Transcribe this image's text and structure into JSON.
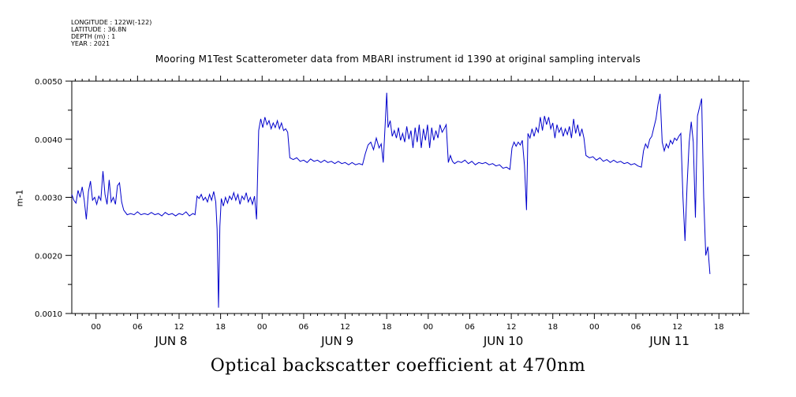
{
  "header": {
    "longitude": "LONGITUDE : 122W(-122)",
    "latitude": "LATITUDE : 36.8N",
    "depth": "DEPTH (m) : 1",
    "year": "YEAR : 2021",
    "title": "Mooring M1Test Scatterometer data from MBARI instrument id 1390 at original sampling intervals"
  },
  "xaxis_title": "Optical backscatter coefficient at 470nm",
  "chart_data": {
    "type": "line",
    "ylabel": "m-1",
    "xlabel": "Optical backscatter coefficient at 470nm",
    "xlim": [
      -3.5,
      93.5
    ],
    "ylim": [
      0.001,
      0.005
    ],
    "x_unit": "hours since 2021-06-08 00:00",
    "yticks": [
      "0.0010",
      "0.0020",
      "0.0030",
      "0.0040",
      "0.0050"
    ],
    "ytick_values": [
      0.001,
      0.002,
      0.003,
      0.004,
      0.005
    ],
    "xtick_labels": [
      "00",
      "06",
      "12",
      "18",
      "00",
      "06",
      "12",
      "18",
      "00",
      "06",
      "12",
      "18",
      "00",
      "06",
      "12",
      "18"
    ],
    "xtick_hours": [
      0,
      6,
      12,
      18,
      24,
      30,
      36,
      42,
      48,
      54,
      60,
      66,
      72,
      78,
      84,
      90
    ],
    "day_labels": [
      "JUN  8",
      "JUN  9",
      "JUN 10",
      "JUN 11"
    ],
    "day_label_hours": [
      12,
      36,
      60,
      84
    ],
    "line_color": "#0000cc",
    "series": [
      {
        "points": [
          [
            -3.5,
            0.00305
          ],
          [
            -3.2,
            0.00295
          ],
          [
            -2.9,
            0.0029
          ],
          [
            -2.6,
            0.00312
          ],
          [
            -2.3,
            0.003
          ],
          [
            -2.0,
            0.00318
          ],
          [
            -1.7,
            0.00295
          ],
          [
            -1.4,
            0.00262
          ],
          [
            -1.1,
            0.0031
          ],
          [
            -0.8,
            0.00328
          ],
          [
            -0.5,
            0.00295
          ],
          [
            -0.2,
            0.003
          ],
          [
            0.1,
            0.00288
          ],
          [
            0.4,
            0.00302
          ],
          [
            0.7,
            0.00295
          ],
          [
            1.0,
            0.00345
          ],
          [
            1.3,
            0.00305
          ],
          [
            1.6,
            0.00288
          ],
          [
            1.9,
            0.0033
          ],
          [
            2.2,
            0.00292
          ],
          [
            2.5,
            0.003
          ],
          [
            2.8,
            0.00288
          ],
          [
            3.1,
            0.0032
          ],
          [
            3.4,
            0.00325
          ],
          [
            3.7,
            0.00292
          ],
          [
            4.0,
            0.00278
          ],
          [
            4.5,
            0.0027
          ],
          [
            5.0,
            0.00272
          ],
          [
            5.5,
            0.0027
          ],
          [
            6.0,
            0.00275
          ],
          [
            6.5,
            0.0027
          ],
          [
            7.0,
            0.00272
          ],
          [
            7.5,
            0.0027
          ],
          [
            8.0,
            0.00274
          ],
          [
            8.5,
            0.0027
          ],
          [
            9.0,
            0.00272
          ],
          [
            9.5,
            0.00268
          ],
          [
            10.0,
            0.00274
          ],
          [
            10.5,
            0.0027
          ],
          [
            11.0,
            0.00272
          ],
          [
            11.5,
            0.00268
          ],
          [
            12.0,
            0.00272
          ],
          [
            12.5,
            0.0027
          ],
          [
            13.0,
            0.00275
          ],
          [
            13.5,
            0.00268
          ],
          [
            14.0,
            0.00272
          ],
          [
            14.3,
            0.0027
          ],
          [
            14.6,
            0.00302
          ],
          [
            14.9,
            0.00298
          ],
          [
            15.2,
            0.00305
          ],
          [
            15.5,
            0.00295
          ],
          [
            15.8,
            0.003
          ],
          [
            16.1,
            0.00292
          ],
          [
            16.4,
            0.00305
          ],
          [
            16.7,
            0.00295
          ],
          [
            17.0,
            0.0031
          ],
          [
            17.3,
            0.00292
          ],
          [
            17.5,
            0.00245
          ],
          [
            17.7,
            0.0011
          ],
          [
            17.9,
            0.0025
          ],
          [
            18.1,
            0.00298
          ],
          [
            18.4,
            0.00285
          ],
          [
            18.7,
            0.003
          ],
          [
            19.0,
            0.0029
          ],
          [
            19.3,
            0.00302
          ],
          [
            19.6,
            0.00296
          ],
          [
            19.9,
            0.00308
          ],
          [
            20.2,
            0.00295
          ],
          [
            20.5,
            0.00305
          ],
          [
            20.8,
            0.00288
          ],
          [
            21.1,
            0.00302
          ],
          [
            21.4,
            0.00296
          ],
          [
            21.7,
            0.00308
          ],
          [
            22.0,
            0.00292
          ],
          [
            22.3,
            0.003
          ],
          [
            22.6,
            0.00288
          ],
          [
            22.9,
            0.00302
          ],
          [
            23.2,
            0.00262
          ],
          [
            23.5,
            0.00415
          ],
          [
            23.8,
            0.00435
          ],
          [
            24.1,
            0.0042
          ],
          [
            24.4,
            0.00438
          ],
          [
            24.7,
            0.00425
          ],
          [
            25.0,
            0.00432
          ],
          [
            25.3,
            0.00418
          ],
          [
            25.6,
            0.00428
          ],
          [
            25.9,
            0.0042
          ],
          [
            26.2,
            0.00432
          ],
          [
            26.5,
            0.00418
          ],
          [
            26.8,
            0.00428
          ],
          [
            27.1,
            0.00415
          ],
          [
            27.4,
            0.00418
          ],
          [
            27.7,
            0.00412
          ],
          [
            28.0,
            0.00368
          ],
          [
            28.5,
            0.00365
          ],
          [
            29.0,
            0.00368
          ],
          [
            29.5,
            0.00362
          ],
          [
            30.0,
            0.00364
          ],
          [
            30.5,
            0.0036
          ],
          [
            31.0,
            0.00366
          ],
          [
            31.5,
            0.00362
          ],
          [
            32.0,
            0.00364
          ],
          [
            32.5,
            0.0036
          ],
          [
            33.0,
            0.00364
          ],
          [
            33.5,
            0.0036
          ],
          [
            34.0,
            0.00362
          ],
          [
            34.5,
            0.00358
          ],
          [
            35.0,
            0.00362
          ],
          [
            35.5,
            0.00358
          ],
          [
            36.0,
            0.0036
          ],
          [
            36.5,
            0.00356
          ],
          [
            37.0,
            0.0036
          ],
          [
            37.5,
            0.00356
          ],
          [
            38.0,
            0.00358
          ],
          [
            38.5,
            0.00356
          ],
          [
            38.9,
            0.00375
          ],
          [
            39.3,
            0.0039
          ],
          [
            39.7,
            0.00395
          ],
          [
            40.1,
            0.00382
          ],
          [
            40.5,
            0.00402
          ],
          [
            40.9,
            0.00385
          ],
          [
            41.2,
            0.00392
          ],
          [
            41.5,
            0.0036
          ],
          [
            41.8,
            0.0043
          ],
          [
            42.0,
            0.0048
          ],
          [
            42.2,
            0.0042
          ],
          [
            42.5,
            0.00432
          ],
          [
            42.8,
            0.00405
          ],
          [
            43.1,
            0.00415
          ],
          [
            43.4,
            0.00402
          ],
          [
            43.7,
            0.0042
          ],
          [
            44.0,
            0.00398
          ],
          [
            44.3,
            0.0041
          ],
          [
            44.6,
            0.00395
          ],
          [
            44.9,
            0.00422
          ],
          [
            45.2,
            0.004
          ],
          [
            45.5,
            0.00415
          ],
          [
            45.8,
            0.00385
          ],
          [
            46.1,
            0.0042
          ],
          [
            46.4,
            0.00395
          ],
          [
            46.7,
            0.00425
          ],
          [
            47.0,
            0.00385
          ],
          [
            47.3,
            0.00418
          ],
          [
            47.6,
            0.00398
          ],
          [
            47.9,
            0.00425
          ],
          [
            48.2,
            0.00385
          ],
          [
            48.5,
            0.0042
          ],
          [
            48.8,
            0.00398
          ],
          [
            49.1,
            0.00415
          ],
          [
            49.4,
            0.00402
          ],
          [
            49.7,
            0.00425
          ],
          [
            50.0,
            0.00412
          ],
          [
            50.3,
            0.00418
          ],
          [
            50.6,
            0.00425
          ],
          [
            50.9,
            0.0036
          ],
          [
            51.2,
            0.00372
          ],
          [
            51.5,
            0.00362
          ],
          [
            51.8,
            0.00358
          ],
          [
            52.3,
            0.00362
          ],
          [
            52.8,
            0.0036
          ],
          [
            53.3,
            0.00364
          ],
          [
            53.8,
            0.00358
          ],
          [
            54.3,
            0.00362
          ],
          [
            54.8,
            0.00356
          ],
          [
            55.3,
            0.0036
          ],
          [
            55.8,
            0.00358
          ],
          [
            56.3,
            0.0036
          ],
          [
            56.8,
            0.00356
          ],
          [
            57.3,
            0.00358
          ],
          [
            57.8,
            0.00354
          ],
          [
            58.3,
            0.00356
          ],
          [
            58.8,
            0.0035
          ],
          [
            59.3,
            0.00352
          ],
          [
            59.8,
            0.00348
          ],
          [
            60.1,
            0.00385
          ],
          [
            60.4,
            0.00395
          ],
          [
            60.7,
            0.00388
          ],
          [
            61.0,
            0.00395
          ],
          [
            61.3,
            0.0039
          ],
          [
            61.6,
            0.00398
          ],
          [
            61.9,
            0.00355
          ],
          [
            62.2,
            0.00278
          ],
          [
            62.4,
            0.0041
          ],
          [
            62.7,
            0.00402
          ],
          [
            63.0,
            0.00418
          ],
          [
            63.3,
            0.00405
          ],
          [
            63.6,
            0.0042
          ],
          [
            63.9,
            0.00412
          ],
          [
            64.2,
            0.00438
          ],
          [
            64.5,
            0.00415
          ],
          [
            64.8,
            0.0044
          ],
          [
            65.1,
            0.00425
          ],
          [
            65.4,
            0.00438
          ],
          [
            65.7,
            0.00418
          ],
          [
            66.0,
            0.00428
          ],
          [
            66.3,
            0.00402
          ],
          [
            66.6,
            0.00425
          ],
          [
            66.9,
            0.00412
          ],
          [
            67.2,
            0.0042
          ],
          [
            67.5,
            0.00405
          ],
          [
            67.8,
            0.00418
          ],
          [
            68.1,
            0.00408
          ],
          [
            68.4,
            0.00422
          ],
          [
            68.7,
            0.00402
          ],
          [
            69.0,
            0.00435
          ],
          [
            69.3,
            0.0041
          ],
          [
            69.6,
            0.00425
          ],
          [
            69.9,
            0.00405
          ],
          [
            70.2,
            0.00418
          ],
          [
            70.5,
            0.00402
          ],
          [
            70.8,
            0.00372
          ],
          [
            71.3,
            0.00368
          ],
          [
            71.8,
            0.0037
          ],
          [
            72.3,
            0.00364
          ],
          [
            72.8,
            0.00368
          ],
          [
            73.3,
            0.00362
          ],
          [
            73.8,
            0.00365
          ],
          [
            74.3,
            0.0036
          ],
          [
            74.8,
            0.00364
          ],
          [
            75.3,
            0.0036
          ],
          [
            75.8,
            0.00362
          ],
          [
            76.3,
            0.00358
          ],
          [
            76.8,
            0.0036
          ],
          [
            77.3,
            0.00356
          ],
          [
            77.8,
            0.00358
          ],
          [
            78.3,
            0.00354
          ],
          [
            78.8,
            0.00352
          ],
          [
            79.1,
            0.0038
          ],
          [
            79.4,
            0.00392
          ],
          [
            79.7,
            0.00385
          ],
          [
            80.0,
            0.004
          ],
          [
            80.3,
            0.00405
          ],
          [
            80.6,
            0.0042
          ],
          [
            80.9,
            0.00435
          ],
          [
            81.2,
            0.0046
          ],
          [
            81.5,
            0.00478
          ],
          [
            81.8,
            0.00395
          ],
          [
            82.1,
            0.0038
          ],
          [
            82.4,
            0.00392
          ],
          [
            82.7,
            0.00385
          ],
          [
            83.0,
            0.00398
          ],
          [
            83.3,
            0.00392
          ],
          [
            83.6,
            0.00402
          ],
          [
            83.9,
            0.00398
          ],
          [
            84.2,
            0.00405
          ],
          [
            84.5,
            0.0041
          ],
          [
            84.8,
            0.003
          ],
          [
            85.1,
            0.00225
          ],
          [
            85.4,
            0.0032
          ],
          [
            85.7,
            0.00395
          ],
          [
            86.0,
            0.0043
          ],
          [
            86.3,
            0.00395
          ],
          [
            86.6,
            0.00265
          ],
          [
            86.9,
            0.0044
          ],
          [
            87.2,
            0.00455
          ],
          [
            87.5,
            0.0047
          ],
          [
            87.8,
            0.003
          ],
          [
            88.1,
            0.002
          ],
          [
            88.4,
            0.00215
          ],
          [
            88.7,
            0.00168
          ]
        ]
      }
    ]
  }
}
